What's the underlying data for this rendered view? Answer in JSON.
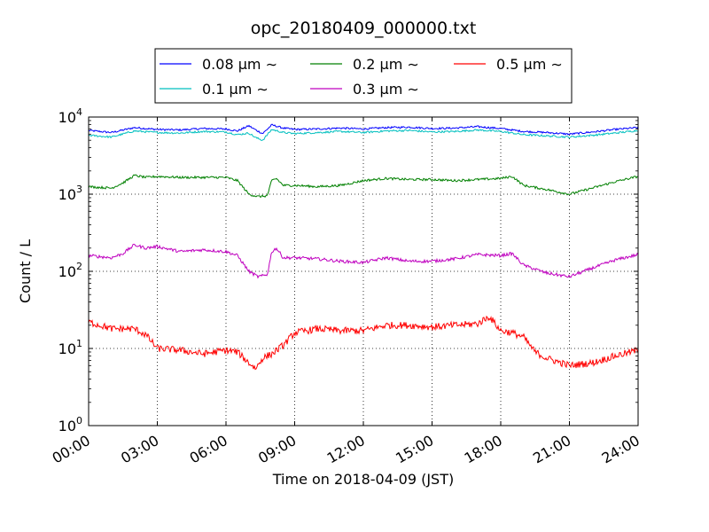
{
  "chart_data": {
    "type": "line",
    "title": "opc_20180409_000000.txt",
    "xlabel": "Time on 2018-04-09 (JST)",
    "ylabel": "Count / L",
    "x_unit": "hours",
    "xlim": [
      0,
      24
    ],
    "ylim": [
      1,
      10000
    ],
    "y_scale": "log",
    "grid": true,
    "legend_position": "top-center",
    "x_ticks": [
      {
        "value": 0,
        "label": "00:00"
      },
      {
        "value": 3,
        "label": "03:00"
      },
      {
        "value": 6,
        "label": "06:00"
      },
      {
        "value": 9,
        "label": "09:00"
      },
      {
        "value": 12,
        "label": "12:00"
      },
      {
        "value": 15,
        "label": "15:00"
      },
      {
        "value": 18,
        "label": "18:00"
      },
      {
        "value": 21,
        "label": "21:00"
      },
      {
        "value": 24,
        "label": "24:00"
      }
    ],
    "y_ticks": [
      {
        "value": 1,
        "base": "10",
        "exp": "0"
      },
      {
        "value": 10,
        "base": "10",
        "exp": "1"
      },
      {
        "value": 100,
        "base": "10",
        "exp": "2"
      },
      {
        "value": 1000,
        "base": "10",
        "exp": "3"
      },
      {
        "value": 10000,
        "base": "10",
        "exp": "4"
      }
    ],
    "series": [
      {
        "name": "0.08 μm ∼",
        "color": "#0000ff",
        "x": [
          0,
          1,
          2,
          3,
          4,
          5,
          6,
          6.5,
          7,
          7.3,
          7.6,
          8,
          8.5,
          9,
          10,
          11,
          12,
          13,
          14,
          15,
          16,
          17,
          18,
          19,
          20,
          21,
          22,
          23,
          24
        ],
        "y": [
          6700,
          6300,
          7300,
          6900,
          6800,
          7100,
          7000,
          6600,
          7700,
          6800,
          6100,
          7900,
          7200,
          6900,
          7000,
          7200,
          7000,
          7300,
          7400,
          7100,
          7200,
          7500,
          7100,
          6500,
          6300,
          6000,
          6400,
          6900,
          7300
        ]
      },
      {
        "name": "0.1 μm ∼",
        "color": "#00bfbf",
        "x": [
          0,
          1,
          2,
          3,
          4,
          5,
          6,
          6.5,
          7,
          7.3,
          7.6,
          8,
          8.5,
          9,
          10,
          11,
          12,
          13,
          14,
          15,
          16,
          17,
          18,
          19,
          20,
          21,
          22,
          23,
          24
        ],
        "y": [
          5800,
          5500,
          6600,
          6300,
          6200,
          6500,
          6400,
          5900,
          6200,
          5400,
          5000,
          6900,
          6300,
          6100,
          6300,
          6500,
          6300,
          6600,
          6700,
          6400,
          6500,
          6800,
          6500,
          5900,
          5700,
          5500,
          5800,
          6200,
          6700
        ]
      },
      {
        "name": "0.2 μm ∼",
        "color": "#008000",
        "x": [
          0,
          1,
          1.5,
          2,
          2.5,
          3,
          4,
          5,
          6,
          6.5,
          7,
          7.4,
          7.8,
          8,
          8.2,
          8.5,
          9,
          10,
          11,
          12,
          13,
          14,
          15,
          16,
          17,
          18,
          18.5,
          19,
          20,
          21,
          22,
          23,
          24
        ],
        "y": [
          1250,
          1200,
          1400,
          1750,
          1650,
          1700,
          1650,
          1650,
          1650,
          1500,
          1000,
          930,
          950,
          1500,
          1600,
          1300,
          1300,
          1250,
          1300,
          1500,
          1600,
          1550,
          1550,
          1500,
          1550,
          1600,
          1700,
          1300,
          1150,
          1000,
          1200,
          1450,
          1700
        ]
      },
      {
        "name": "0.3 μm ∼",
        "color": "#bf00bf",
        "x": [
          0,
          1,
          1.5,
          2,
          2.5,
          3,
          4,
          5,
          6,
          6.5,
          7,
          7.4,
          7.8,
          8,
          8.2,
          8.5,
          9,
          10,
          11,
          12,
          13,
          14,
          15,
          16,
          17,
          18,
          18.5,
          19,
          20,
          21,
          22,
          23,
          24
        ],
        "y": [
          160,
          150,
          170,
          220,
          200,
          210,
          180,
          190,
          180,
          160,
          100,
          85,
          90,
          180,
          200,
          150,
          150,
          145,
          135,
          130,
          150,
          135,
          135,
          145,
          165,
          160,
          170,
          120,
          95,
          85,
          110,
          140,
          165
        ]
      },
      {
        "name": "0.5 μm ∼",
        "color": "#ff0000",
        "x": [
          0,
          0.5,
          1,
          2,
          2.5,
          3,
          4,
          5,
          6,
          6.5,
          7,
          7.3,
          7.6,
          8,
          8.5,
          9,
          10,
          11,
          12,
          13,
          14,
          15,
          16,
          17,
          17.5,
          18,
          18.5,
          19,
          19.5,
          20,
          21,
          22,
          23,
          24
        ],
        "y": [
          22,
          20,
          18,
          18,
          15,
          10,
          9.5,
          8.5,
          9.5,
          9,
          6.5,
          5.5,
          7.5,
          8.5,
          11,
          16,
          18,
          17,
          17,
          20,
          20,
          19,
          20,
          21,
          26,
          17,
          16,
          14,
          9,
          7.5,
          6,
          6.5,
          8,
          9.5
        ]
      }
    ]
  }
}
